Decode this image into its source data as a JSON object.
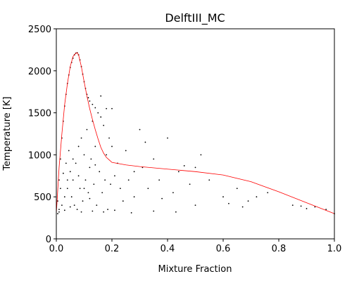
{
  "chart_data": {
    "type": "scatter",
    "title": "DelftIII_MC",
    "xlabel": "Mixture Fraction",
    "ylabel": "Temperature [K]",
    "xlim": [
      0,
      1
    ],
    "ylim": [
      0,
      2500
    ],
    "xticks": [
      {
        "value": 0,
        "label": "0.0"
      },
      {
        "value": 0.2,
        "label": "0.2"
      },
      {
        "value": 0.4,
        "label": "0.4"
      },
      {
        "value": 0.6,
        "label": "0.6"
      },
      {
        "value": 0.8,
        "label": "0.8"
      },
      {
        "value": 1,
        "label": "1.0"
      }
    ],
    "yticks": [
      0,
      500,
      1000,
      1500,
      2000,
      2500
    ],
    "series": [
      {
        "type": "scatter",
        "color": "#000000",
        "x": [
          0.005,
          0.01,
          0.015,
          0.02,
          0.025,
          0.03,
          0.035,
          0.04,
          0.045,
          0.05,
          0.055,
          0.06,
          0.065,
          0.07,
          0.075,
          0.08,
          0.085,
          0.09,
          0.095,
          0.1,
          0.105,
          0.11,
          0.115,
          0.12,
          0.13,
          0.14,
          0.01,
          0.02,
          0.03,
          0.04,
          0.05,
          0.06,
          0.07,
          0.08,
          0.09,
          0.1,
          0.11,
          0.12,
          0.13,
          0.14,
          0.15,
          0.16,
          0.17,
          0.18,
          0.19,
          0.2,
          0.015,
          0.025,
          0.035,
          0.045,
          0.055,
          0.065,
          0.075,
          0.085,
          0.095,
          0.105,
          0.115,
          0.125,
          0.135,
          0.145,
          0.155,
          0.165,
          0.175,
          0.185,
          0.195,
          0.21,
          0.22,
          0.23,
          0.25,
          0.26,
          0.28,
          0.3,
          0.31,
          0.33,
          0.35,
          0.37,
          0.4,
          0.42,
          0.44,
          0.46,
          0.48,
          0.5,
          0.52,
          0.55,
          0.6,
          0.62,
          0.65,
          0.67,
          0.69,
          0.72,
          0.76,
          0.85,
          0.88,
          0.9,
          0.93,
          0.97,
          1.0,
          0.005,
          0.01,
          0.03,
          0.05,
          0.09,
          0.13,
          0.17,
          0.21,
          0.27,
          0.35,
          0.43,
          0.16,
          0.2,
          0.08,
          0.06,
          0.04,
          0.1,
          0.12,
          0.14,
          0.18,
          0.24,
          0.28,
          0.32,
          0.38,
          0.5
        ],
        "values": [
          450,
          700,
          950,
          1200,
          1400,
          1580,
          1720,
          1850,
          1950,
          2040,
          2100,
          2150,
          2190,
          2210,
          2215,
          2190,
          2130,
          2050,
          1960,
          1870,
          1790,
          1720,
          1680,
          1640,
          1600,
          1560,
          350,
          400,
          500,
          600,
          800,
          700,
          900,
          1100,
          1200,
          1000,
          1300,
          850,
          1400,
          1100,
          1500,
          1450,
          1350,
          1550,
          1200,
          1100,
          600,
          780,
          900,
          1050,
          500,
          400,
          350,
          600,
          450,
          700,
          550,
          950,
          650,
          400,
          800,
          550,
          700,
          350,
          650,
          750,
          900,
          600,
          1050,
          700,
          500,
          1300,
          850,
          600,
          950,
          700,
          1200,
          550,
          800,
          870,
          650,
          400,
          1000,
          700,
          500,
          420,
          600,
          380,
          450,
          500,
          550,
          400,
          390,
          360,
          380,
          350,
          300,
          300,
          320,
          340,
          380,
          320,
          330,
          320,
          340,
          310,
          330,
          320,
          1700,
          1550,
          750,
          950,
          700,
          600,
          480,
          880,
          1000,
          450,
          800,
          1150,
          480,
          850
        ]
      },
      {
        "type": "line",
        "color": "#ff0000",
        "x": [
          0,
          0.01,
          0.02,
          0.03,
          0.04,
          0.05,
          0.06,
          0.07,
          0.075,
          0.08,
          0.09,
          0.1,
          0.11,
          0.12,
          0.13,
          0.14,
          0.15,
          0.16,
          0.17,
          0.18,
          0.19,
          0.2,
          0.25,
          0.3,
          0.4,
          0.5,
          0.6,
          0.7,
          0.8,
          0.9,
          1.0
        ],
        "values": [
          300,
          850,
          1250,
          1600,
          1850,
          2050,
          2170,
          2210,
          2215,
          2190,
          2050,
          1870,
          1700,
          1550,
          1420,
          1300,
          1190,
          1090,
          1020,
          970,
          940,
          910,
          880,
          860,
          830,
          800,
          760,
          680,
          560,
          430,
          300
        ]
      }
    ]
  }
}
